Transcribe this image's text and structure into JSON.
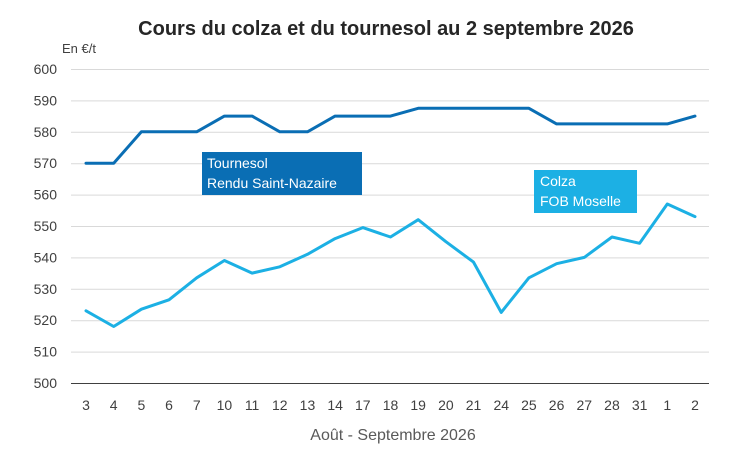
{
  "chart_data": {
    "type": "line",
    "title": "Cours du colza et du tournesol au 2 septembre 2026",
    "ylabel": "En €/t",
    "xlabel": "Août - Septembre 2026",
    "ylim": [
      500,
      600
    ],
    "yticks": [
      500,
      510,
      520,
      530,
      540,
      550,
      560,
      570,
      580,
      590,
      600
    ],
    "categories": [
      "3",
      "4",
      "5",
      "6",
      "7",
      "10",
      "11",
      "12",
      "13",
      "14",
      "17",
      "18",
      "19",
      "20",
      "21",
      "24",
      "25",
      "26",
      "27",
      "28",
      "31",
      "1",
      "2"
    ],
    "grid": true,
    "series": [
      {
        "name": "Tournesol Rendu Saint-Nazaire",
        "label_lines": [
          "Tournesol",
          "Rendu Saint-Nazaire"
        ],
        "color": "#0a6eb4",
        "values": [
          570,
          570,
          580,
          580,
          580,
          585,
          585,
          580,
          580,
          585,
          585,
          585,
          587.5,
          587.5,
          587.5,
          587.5,
          587.5,
          582.5,
          582.5,
          582.5,
          582.5,
          582.5,
          585
        ]
      },
      {
        "name": "Colza FOB Moselle",
        "label_lines": [
          "Colza",
          "FOB Moselle"
        ],
        "color": "#1cb0e4",
        "values": [
          523,
          518,
          523.5,
          526.5,
          533.5,
          539,
          535,
          537,
          541,
          546,
          549.5,
          546.5,
          552,
          545,
          538.5,
          522.5,
          533.5,
          538,
          540,
          546.5,
          544.5,
          557,
          553
        ]
      }
    ]
  }
}
